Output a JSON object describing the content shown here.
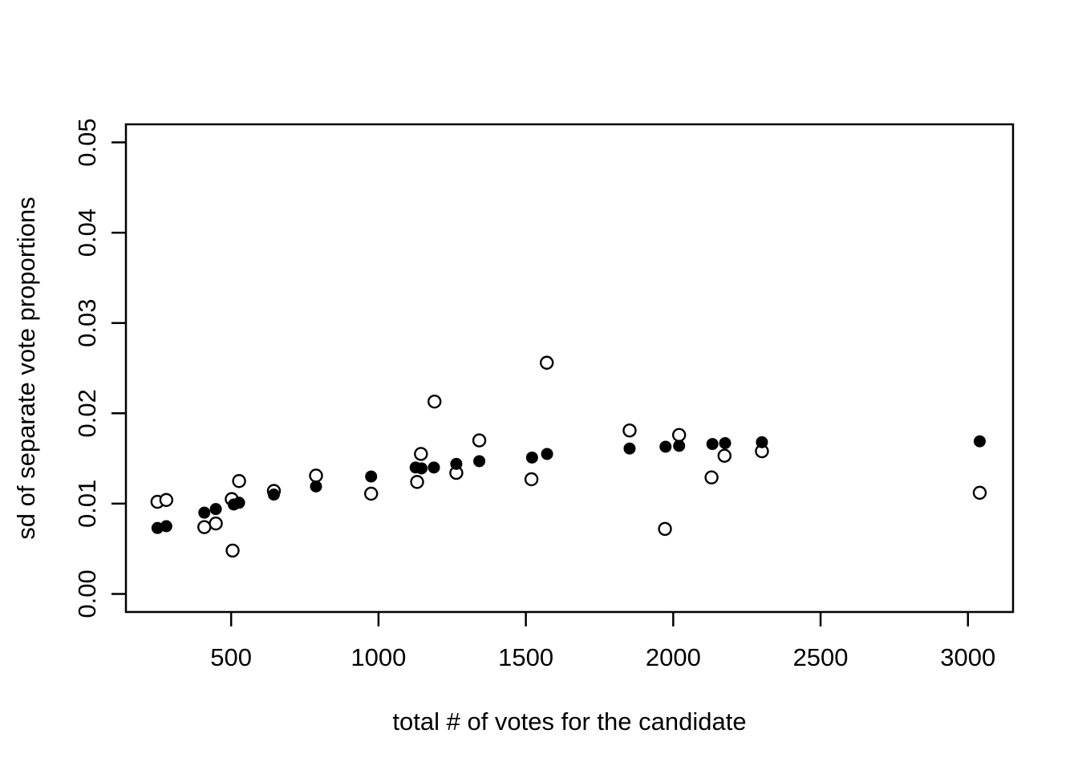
{
  "chart_data": {
    "type": "scatter",
    "title": "",
    "xlabel": "total # of votes for the candidate",
    "ylabel": "sd of separate vote proportions",
    "xlim": [
      143,
      3153
    ],
    "ylim": [
      -0.002,
      0.052
    ],
    "x_ticks": [
      500,
      1000,
      1500,
      2000,
      2500,
      3000
    ],
    "x_tick_labels": [
      "500",
      "1000",
      "1500",
      "2000",
      "2500",
      "3000"
    ],
    "y_ticks": [
      0.0,
      0.01,
      0.02,
      0.03,
      0.04,
      0.05
    ],
    "y_tick_labels": [
      "0.00",
      "0.01",
      "0.02",
      "0.03",
      "0.04",
      "0.05"
    ],
    "grid": false,
    "legend": "none",
    "background_color": "#FFFFFF",
    "foreground_color": "#000000",
    "series": [
      {
        "name": "open-circle-estimates",
        "marker": "open-circle",
        "color": "#000000",
        "points": [
          [
            250,
            0.0102
          ],
          [
            280,
            0.0104
          ],
          [
            409,
            0.0074
          ],
          [
            448,
            0.0078
          ],
          [
            502,
            0.0105
          ],
          [
            505,
            0.0048
          ],
          [
            527,
            0.0125
          ],
          [
            645,
            0.0114
          ],
          [
            788,
            0.0131
          ],
          [
            975,
            0.0111
          ],
          [
            1131,
            0.0124
          ],
          [
            1144,
            0.0155
          ],
          [
            1190,
            0.0213
          ],
          [
            1264,
            0.0134
          ],
          [
            1342,
            0.017
          ],
          [
            1519,
            0.0127
          ],
          [
            1571,
            0.0256
          ],
          [
            1852,
            0.0181
          ],
          [
            1972,
            0.0072
          ],
          [
            2020,
            0.0176
          ],
          [
            2130,
            0.0129
          ],
          [
            2174,
            0.0153
          ],
          [
            2301,
            0.0158
          ],
          [
            3040,
            0.0112
          ]
        ]
      },
      {
        "name": "filled-circle-estimates",
        "marker": "filled-circle",
        "color": "#000000",
        "points": [
          [
            250,
            0.0073
          ],
          [
            280,
            0.0075
          ],
          [
            409,
            0.009
          ],
          [
            448,
            0.0094
          ],
          [
            509,
            0.0099
          ],
          [
            527,
            0.0101
          ],
          [
            645,
            0.011
          ],
          [
            788,
            0.0119
          ],
          [
            975,
            0.013
          ],
          [
            1126,
            0.014
          ],
          [
            1146,
            0.0139
          ],
          [
            1188,
            0.014
          ],
          [
            1264,
            0.0144
          ],
          [
            1342,
            0.0147
          ],
          [
            1521,
            0.0151
          ],
          [
            1572,
            0.0155
          ],
          [
            1852,
            0.0161
          ],
          [
            1974,
            0.0163
          ],
          [
            2020,
            0.0164
          ],
          [
            2133,
            0.0166
          ],
          [
            2176,
            0.0167
          ],
          [
            2301,
            0.0168
          ],
          [
            3040,
            0.0169
          ]
        ]
      }
    ]
  }
}
